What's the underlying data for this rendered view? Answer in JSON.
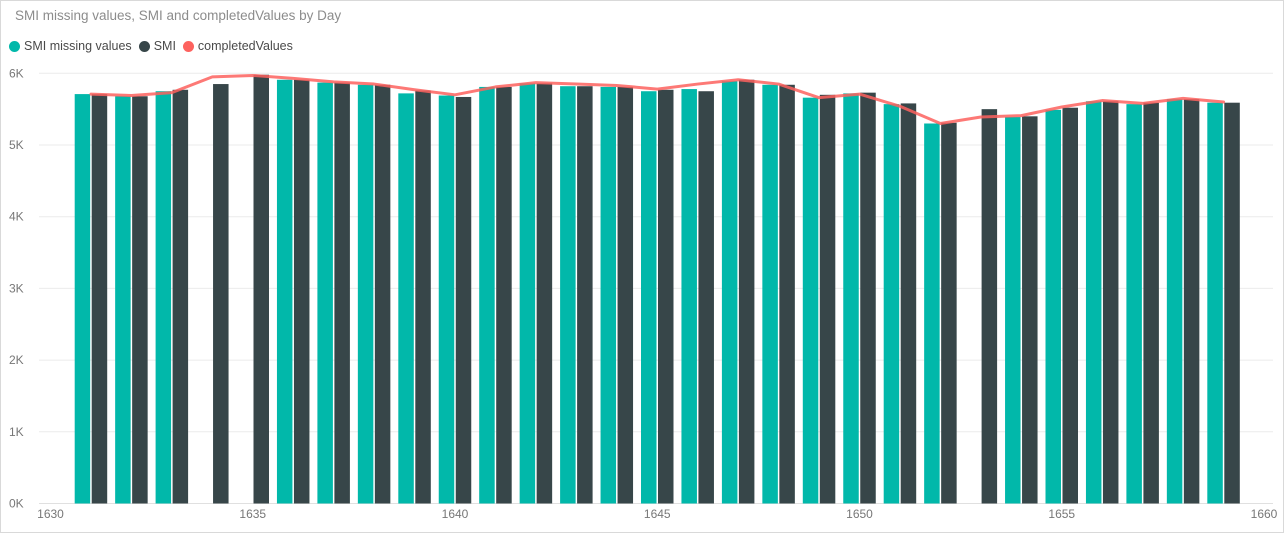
{
  "window": {
    "background": "#ffffff",
    "border_color": "#d9d9d9"
  },
  "colors": {
    "title": "#8c8c8c",
    "legend_text": "#4a4a4a",
    "axis_text": "#777777",
    "gridline": "#ebebeb",
    "baseline": "#e0e0e0",
    "teal": "#01B8AA",
    "dark": "#374649",
    "red": "#FD625E"
  },
  "chart_data": {
    "type": "combo-bar-line",
    "title": "SMI missing values, SMI and completedValues by Day",
    "x_field": "Day",
    "xlim": [
      1630,
      1660
    ],
    "ylim": [
      0,
      6000
    ],
    "grid": "horizontal",
    "legend_position": "top-left",
    "x_ticks": [
      1630,
      1635,
      1640,
      1645,
      1650,
      1655,
      1660
    ],
    "y_ticks": [
      {
        "value": 0,
        "label": "0K"
      },
      {
        "value": 1000,
        "label": "1K"
      },
      {
        "value": 2000,
        "label": "2K"
      },
      {
        "value": 3000,
        "label": "3K"
      },
      {
        "value": 4000,
        "label": "4K"
      },
      {
        "value": 5000,
        "label": "5K"
      },
      {
        "value": 6000,
        "label": "6K"
      }
    ],
    "x": [
      1631,
      1632,
      1633,
      1634,
      1635,
      1636,
      1637,
      1638,
      1639,
      1640,
      1641,
      1642,
      1643,
      1644,
      1645,
      1646,
      1647,
      1648,
      1649,
      1650,
      1651,
      1652,
      1653,
      1654,
      1655,
      1656,
      1657,
      1658,
      1659
    ],
    "series": [
      {
        "name": "SMI missing values",
        "type": "bar",
        "color": "#01B8AA",
        "values": [
          5710,
          5680,
          5750,
          null,
          null,
          5910,
          5870,
          5840,
          5720,
          5690,
          5810,
          5860,
          5820,
          5810,
          5750,
          5780,
          5890,
          5840,
          5660,
          5720,
          5570,
          5300,
          null,
          5390,
          5490,
          5610,
          5570,
          5640,
          5590
        ]
      },
      {
        "name": "SMI",
        "type": "bar",
        "color": "#374649",
        "values": [
          5710,
          5680,
          5770,
          5850,
          5980,
          5910,
          5870,
          5840,
          5760,
          5670,
          5810,
          5860,
          5820,
          5810,
          5770,
          5750,
          5910,
          5840,
          5700,
          5730,
          5580,
          5310,
          5500,
          5400,
          5520,
          5610,
          5590,
          5640,
          5590
        ]
      },
      {
        "name": "completedValues",
        "type": "line",
        "color": "#FD625E",
        "values": [
          5710,
          5690,
          5730,
          5950,
          5970,
          5930,
          5880,
          5850,
          5770,
          5700,
          5810,
          5870,
          5850,
          5830,
          5780,
          5850,
          5910,
          5850,
          5660,
          5710,
          5540,
          5300,
          5390,
          5410,
          5530,
          5620,
          5580,
          5650,
          5600
        ]
      }
    ]
  }
}
